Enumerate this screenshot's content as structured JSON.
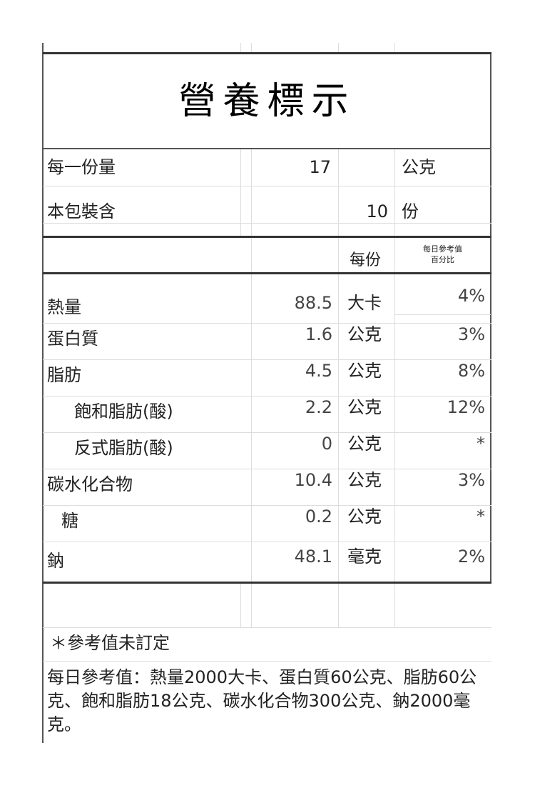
{
  "title": "營養標示",
  "serving": {
    "label": "每一份量",
    "value": "17",
    "unit": "公克"
  },
  "servings_per_pack": {
    "label": "本包裝含",
    "value": "10",
    "unit": "份"
  },
  "header": {
    "per_serving": "每份",
    "dv_line1": "每日參考值",
    "dv_line2": "百分比"
  },
  "rows": [
    {
      "name": "熱量",
      "value": "88.5",
      "unit": "大卡",
      "dv": "4%"
    },
    {
      "name": "蛋白質",
      "value": "1.6",
      "unit": "公克",
      "dv": "3%"
    },
    {
      "name": "脂肪",
      "value": "4.5",
      "unit": "公克",
      "dv": "8%"
    },
    {
      "name": "飽和脂肪(酸)",
      "value": "2.2",
      "unit": "公克",
      "dv": "12%"
    },
    {
      "name": "反式脂肪(酸)",
      "value": "0",
      "unit": "公克",
      "dv": "*"
    },
    {
      "name": "碳水化合物",
      "value": "10.4",
      "unit": "公克",
      "dv": "3%"
    },
    {
      "name": "糖",
      "value": "0.2",
      "unit": "公克",
      "dv": "*"
    },
    {
      "name": "鈉",
      "value": "48.1",
      "unit": "毫克",
      "dv": "2%"
    }
  ],
  "note": "＊參考值未訂定",
  "footer": "每日參考值：熱量2000大卡、蛋白質60公克、脂肪60公克、飽和脂肪18公克、碳水化合物300公克、鈉2000毫克。"
}
